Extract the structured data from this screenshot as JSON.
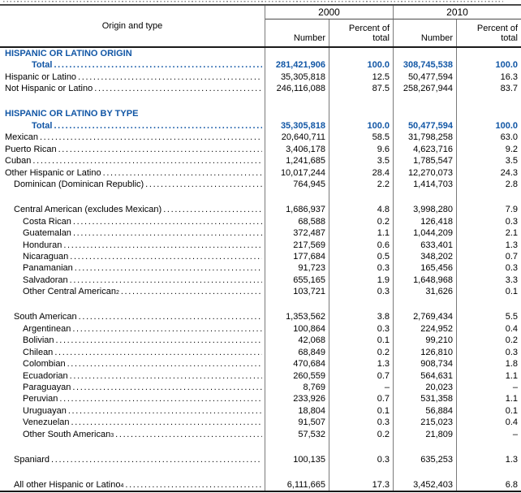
{
  "colors": {
    "accent_blue": "#1156a5",
    "text": "#000000",
    "grid_line": "#7a7a7a",
    "background": "#ffffff"
  },
  "header": {
    "origin_col": "Origin and type",
    "year_2000": "2000",
    "year_2010": "2010",
    "number_label": "Number",
    "percent_label": "Percent of total"
  },
  "rows": [
    {
      "type": "section",
      "label": "HISPANIC OR LATINO ORIGIN"
    },
    {
      "type": "total",
      "label": "Total",
      "n2000": "281,421,906",
      "p2000": "100.0",
      "n2010": "308,745,538",
      "p2010": "100.0"
    },
    {
      "type": "data",
      "indent": 0,
      "label": "Hispanic or Latino",
      "n2000": "35,305,818",
      "p2000": "12.5",
      "n2010": "50,477,594",
      "p2010": "16.3"
    },
    {
      "type": "data",
      "indent": 0,
      "label": "Not Hispanic or Latino",
      "n2000": "246,116,088",
      "p2000": "87.5",
      "n2010": "258,267,944",
      "p2010": "83.7"
    },
    {
      "type": "blank"
    },
    {
      "type": "section",
      "label": "HISPANIC OR LATINO BY TYPE"
    },
    {
      "type": "total",
      "label": "Total",
      "n2000": "35,305,818",
      "p2000": "100.0",
      "n2010": "50,477,594",
      "p2010": "100.0"
    },
    {
      "type": "data",
      "indent": 0,
      "label": "Mexican",
      "n2000": "20,640,711",
      "p2000": "58.5",
      "n2010": "31,798,258",
      "p2010": "63.0"
    },
    {
      "type": "data",
      "indent": 0,
      "label": "Puerto Rican",
      "n2000": "3,406,178",
      "p2000": "9.6",
      "n2010": "4,623,716",
      "p2010": "9.2"
    },
    {
      "type": "data",
      "indent": 0,
      "label": "Cuban",
      "n2000": "1,241,685",
      "p2000": "3.5",
      "n2010": "1,785,547",
      "p2010": "3.5"
    },
    {
      "type": "data",
      "indent": 0,
      "label": "Other Hispanic or Latino",
      "n2000": "10,017,244",
      "p2000": "28.4",
      "n2010": "12,270,073",
      "p2010": "24.3"
    },
    {
      "type": "data",
      "indent": 1,
      "label": "Dominican (Dominican Republic)",
      "n2000": "764,945",
      "p2000": "2.2",
      "n2010": "1,414,703",
      "p2010": "2.8"
    },
    {
      "type": "blank"
    },
    {
      "type": "data",
      "indent": 1,
      "label": "Central American (excludes Mexican)",
      "n2000": "1,686,937",
      "p2000": "4.8",
      "n2010": "3,998,280",
      "p2010": "7.9"
    },
    {
      "type": "data",
      "indent": 2,
      "label": "Costa Rican",
      "n2000": "68,588",
      "p2000": "0.2",
      "n2010": "126,418",
      "p2010": "0.3"
    },
    {
      "type": "data",
      "indent": 2,
      "label": "Guatemalan",
      "n2000": "372,487",
      "p2000": "1.1",
      "n2010": "1,044,209",
      "p2010": "2.1"
    },
    {
      "type": "data",
      "indent": 2,
      "label": "Honduran",
      "n2000": "217,569",
      "p2000": "0.6",
      "n2010": "633,401",
      "p2010": "1.3"
    },
    {
      "type": "data",
      "indent": 2,
      "label": "Nicaraguan",
      "n2000": "177,684",
      "p2000": "0.5",
      "n2010": "348,202",
      "p2010": "0.7"
    },
    {
      "type": "data",
      "indent": 2,
      "label": "Panamanian",
      "n2000": "91,723",
      "p2000": "0.3",
      "n2010": "165,456",
      "p2010": "0.3"
    },
    {
      "type": "data",
      "indent": 2,
      "label": "Salvadoran",
      "n2000": "655,165",
      "p2000": "1.9",
      "n2010": "1,648,968",
      "p2010": "3.3"
    },
    {
      "type": "data",
      "indent": 2,
      "label": "Other Central American",
      "sup": "2",
      "n2000": "103,721",
      "p2000": "0.3",
      "n2010": "31,626",
      "p2010": "0.1"
    },
    {
      "type": "blank"
    },
    {
      "type": "data",
      "indent": 1,
      "label": "South American",
      "n2000": "1,353,562",
      "p2000": "3.8",
      "n2010": "2,769,434",
      "p2010": "5.5"
    },
    {
      "type": "data",
      "indent": 2,
      "label": "Argentinean",
      "n2000": "100,864",
      "p2000": "0.3",
      "n2010": "224,952",
      "p2010": "0.4"
    },
    {
      "type": "data",
      "indent": 2,
      "label": "Bolivian",
      "n2000": "42,068",
      "p2000": "0.1",
      "n2010": "99,210",
      "p2010": "0.2"
    },
    {
      "type": "data",
      "indent": 2,
      "label": "Chilean",
      "n2000": "68,849",
      "p2000": "0.2",
      "n2010": "126,810",
      "p2010": "0.3"
    },
    {
      "type": "data",
      "indent": 2,
      "label": "Colombian",
      "n2000": "470,684",
      "p2000": "1.3",
      "n2010": "908,734",
      "p2010": "1.8"
    },
    {
      "type": "data",
      "indent": 2,
      "label": "Ecuadorian",
      "n2000": "260,559",
      "p2000": "0.7",
      "n2010": "564,631",
      "p2010": "1.1"
    },
    {
      "type": "data",
      "indent": 2,
      "label": "Paraguayan",
      "n2000": "8,769",
      "p2000": "–",
      "n2010": "20,023",
      "p2010": "–"
    },
    {
      "type": "data",
      "indent": 2,
      "label": "Peruvian",
      "n2000": "233,926",
      "p2000": "0.7",
      "n2010": "531,358",
      "p2010": "1.1"
    },
    {
      "type": "data",
      "indent": 2,
      "label": "Uruguayan",
      "n2000": "18,804",
      "p2000": "0.1",
      "n2010": "56,884",
      "p2010": "0.1"
    },
    {
      "type": "data",
      "indent": 2,
      "label": "Venezuelan",
      "n2000": "91,507",
      "p2000": "0.3",
      "n2010": "215,023",
      "p2010": "0.4"
    },
    {
      "type": "data",
      "indent": 2,
      "label": "Other South American",
      "sup": "3",
      "n2000": "57,532",
      "p2000": "0.2",
      "n2010": "21,809",
      "p2010": "–"
    },
    {
      "type": "blank"
    },
    {
      "type": "data",
      "indent": 1,
      "label": "Spaniard",
      "n2000": "100,135",
      "p2000": "0.3",
      "n2010": "635,253",
      "p2010": "1.3"
    },
    {
      "type": "blank"
    },
    {
      "type": "data",
      "indent": 1,
      "label": "All other Hispanic or Latino",
      "sup": "4",
      "n2000": "6,111,665",
      "p2000": "17.3",
      "n2010": "3,452,403",
      "p2010": "6.8"
    }
  ]
}
